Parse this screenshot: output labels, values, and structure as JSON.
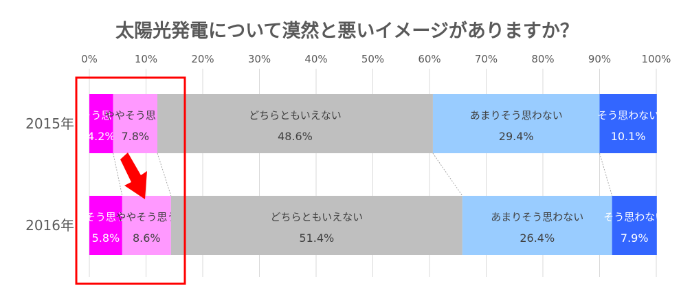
{
  "chart_data": {
    "type": "bar",
    "orientation": "horizontal",
    "stacked": "percent",
    "title": "太陽光発電について漠然と悪いイメージがありますか？",
    "xlim": [
      0,
      100
    ],
    "x_ticks": [
      "0%",
      "10%",
      "20%",
      "30%",
      "40%",
      "50%",
      "60%",
      "70%",
      "80%",
      "90%",
      "100%"
    ],
    "categories": [
      "2015年",
      "2016年"
    ],
    "series": [
      {
        "name": "そう思う",
        "values": [
          4.2,
          5.8
        ],
        "labels": [
          "4.2%",
          "5.8%"
        ],
        "color": "#ff00ff",
        "text_color": "#ffffff"
      },
      {
        "name": "ややそう思う",
        "values": [
          7.8,
          8.6
        ],
        "labels": [
          "7.8%",
          "8.6%"
        ],
        "color": "#ff99ff",
        "text_color": "#404040"
      },
      {
        "name": "どちらともいえない",
        "values": [
          48.6,
          51.4
        ],
        "labels": [
          "48.6%",
          "51.4%"
        ],
        "color": "#bfbfbf",
        "text_color": "#404040"
      },
      {
        "name": "あまりそう思わない",
        "values": [
          29.4,
          26.4
        ],
        "labels": [
          "29.4%",
          "26.4%"
        ],
        "color": "#99ccff",
        "text_color": "#404040"
      },
      {
        "name": "そう思わない",
        "values": [
          10.1,
          7.9
        ],
        "labels": [
          "10.1%",
          "7.9%"
        ],
        "color": "#3366ff",
        "text_color": "#ffffff"
      }
    ],
    "series_lines": true,
    "gridlines": true,
    "legend": "none",
    "annotations": {
      "highlight_box": {
        "color": "#ff0000",
        "covers": [
          "そう思う",
          "ややそう思う"
        ]
      },
      "arrow": {
        "color": "#ff0000",
        "direction": "down"
      }
    }
  }
}
